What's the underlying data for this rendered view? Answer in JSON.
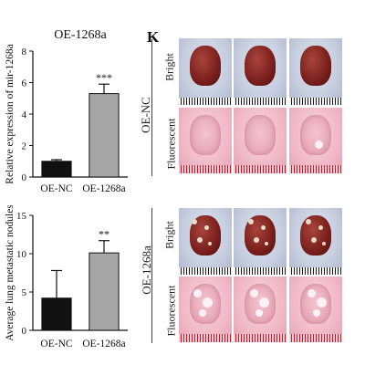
{
  "chart_data": [
    {
      "type": "bar",
      "title": "OE-1268a",
      "ylabel": "Relative expression of mir-1268a",
      "categories": [
        "OE-NC",
        "OE-1268a"
      ],
      "values": [
        1.0,
        5.3
      ],
      "errors": [
        0.1,
        0.6
      ],
      "significance": [
        "",
        "***"
      ],
      "ylim": [
        0,
        8
      ],
      "yticks": [
        "0",
        "2",
        "4",
        "6",
        "8"
      ],
      "bar_colors": [
        "#111111",
        "#a6a6a6"
      ]
    },
    {
      "type": "bar",
      "ylabel": "Average lung metastatic nodules",
      "categories": [
        "OE-NC",
        "OE-1268a"
      ],
      "values": [
        4.2,
        10.1
      ],
      "errors": [
        3.6,
        1.6
      ],
      "significance": [
        "",
        "**"
      ],
      "ylim": [
        0,
        15
      ],
      "yticks": [
        "0",
        "5",
        "10",
        "15"
      ],
      "bar_colors": [
        "#111111",
        "#a6a6a6"
      ]
    }
  ],
  "panel_letter": "K",
  "groups": [
    {
      "name": "OE-NC",
      "rows": [
        {
          "label": "Bright",
          "kind": "bright"
        },
        {
          "label": "Fluorescent",
          "kind": "fluor"
        }
      ]
    },
    {
      "name": "OE-1268a",
      "rows": [
        {
          "label": "Bright",
          "kind": "bright"
        },
        {
          "label": "Fluorescent",
          "kind": "fluor"
        }
      ]
    }
  ]
}
